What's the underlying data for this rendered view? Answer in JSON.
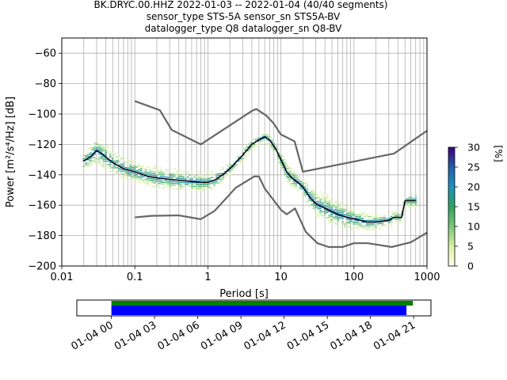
{
  "chart_data": {
    "type": "heatmap",
    "title": {
      "line1": "BK.DRYC.00.HHZ   2022-01-03 -- 2022-01-04  (40/40 segments)",
      "line2": "sensor_type STS-5A sensor_sn STS5A-BV",
      "line3": "datalogger_type Q8 datalogger_sn Q8-BV"
    },
    "xlabel": "Period [s]",
    "ylabel": "Power [m²/s⁴/Hz] [dB]",
    "x_scale": "log",
    "xlim": [
      0.01,
      1000
    ],
    "ylim": [
      -200,
      -50
    ],
    "x_ticks": [
      {
        "value": 0.01,
        "label": "0.01"
      },
      {
        "value": 0.1,
        "label": "0.1"
      },
      {
        "value": 1,
        "label": "1"
      },
      {
        "value": 10,
        "label": "10"
      },
      {
        "value": 100,
        "label": "100"
      },
      {
        "value": 1000,
        "label": "1000"
      }
    ],
    "y_ticks": [
      {
        "value": -60,
        "label": "−60"
      },
      {
        "value": -80,
        "label": "−80"
      },
      {
        "value": -100,
        "label": "−100"
      },
      {
        "value": -120,
        "label": "−120"
      },
      {
        "value": -140,
        "label": "−140"
      },
      {
        "value": -160,
        "label": "−160"
      },
      {
        "value": -180,
        "label": "−180"
      },
      {
        "value": -200,
        "label": "−200"
      }
    ],
    "grid": true,
    "colorbar": {
      "label": "[%]",
      "range": [
        0,
        30
      ],
      "colormap": [
        "#ffffe5",
        "#d9f0a3",
        "#78c679",
        "#2ca25f",
        "#1d91c0",
        "#225ea8",
        "#3f007d"
      ],
      "ticks": [
        {
          "value": 0,
          "label": "0"
        },
        {
          "value": 5,
          "label": "5"
        },
        {
          "value": 10,
          "label": "10"
        },
        {
          "value": 15,
          "label": "15"
        },
        {
          "value": 20,
          "label": "20"
        },
        {
          "value": 25,
          "label": "25"
        },
        {
          "value": 30,
          "label": "30"
        }
      ]
    },
    "series": [
      {
        "kind": "psd-mean",
        "color": "#000000",
        "points": [
          [
            0.02,
            -131
          ],
          [
            0.025,
            -128
          ],
          [
            0.03,
            -124
          ],
          [
            0.035,
            -126
          ],
          [
            0.05,
            -132
          ],
          [
            0.07,
            -136
          ],
          [
            0.1,
            -138
          ],
          [
            0.15,
            -141
          ],
          [
            0.2,
            -142
          ],
          [
            0.3,
            -143
          ],
          [
            0.5,
            -144
          ],
          [
            0.8,
            -145
          ],
          [
            1.0,
            -145
          ],
          [
            1.3,
            -143
          ],
          [
            1.7,
            -139
          ],
          [
            2.2,
            -134
          ],
          [
            3.0,
            -127
          ],
          [
            4.0,
            -120
          ],
          [
            5.0,
            -117
          ],
          [
            6.0,
            -115
          ],
          [
            7.0,
            -117
          ],
          [
            8.5,
            -123
          ],
          [
            10,
            -130
          ],
          [
            12,
            -138
          ],
          [
            14,
            -142
          ],
          [
            17,
            -145
          ],
          [
            20,
            -148
          ],
          [
            25,
            -155
          ],
          [
            30,
            -159
          ],
          [
            40,
            -162
          ],
          [
            60,
            -166
          ],
          [
            80,
            -168
          ],
          [
            100,
            -169
          ],
          [
            150,
            -171
          ],
          [
            200,
            -171
          ],
          [
            300,
            -170
          ],
          [
            350,
            -168
          ],
          [
            450,
            -168
          ],
          [
            500,
            -157
          ],
          [
            600,
            -157
          ],
          [
            700,
            -157
          ]
        ]
      },
      {
        "kind": "noise-model-high",
        "color": "#666666",
        "points": [
          [
            0.1,
            -91.5
          ],
          [
            0.22,
            -97.5
          ],
          [
            0.32,
            -110.5
          ],
          [
            0.8,
            -120
          ],
          [
            4.0,
            -98
          ],
          [
            4.6,
            -96.7
          ],
          [
            6.3,
            -101
          ],
          [
            7.9,
            -106
          ],
          [
            10,
            -113.5
          ],
          [
            15.4,
            -118
          ],
          [
            20,
            -138
          ],
          [
            354.8,
            -126
          ],
          [
            1000,
            -111
          ]
        ]
      },
      {
        "kind": "noise-model-low",
        "color": "#666666",
        "points": [
          [
            0.1,
            -168
          ],
          [
            0.17,
            -167
          ],
          [
            0.4,
            -166.7
          ],
          [
            0.8,
            -169.2
          ],
          [
            1.24,
            -163.7
          ],
          [
            2.4,
            -148.6
          ],
          [
            4.3,
            -141.1
          ],
          [
            5.0,
            -141.1
          ],
          [
            6.0,
            -149
          ],
          [
            10,
            -163
          ],
          [
            12,
            -166
          ],
          [
            15.6,
            -162.1
          ],
          [
            21.9,
            -177.5
          ],
          [
            31.6,
            -185
          ],
          [
            45,
            -187.5
          ],
          [
            70,
            -187.5
          ],
          [
            100,
            -185
          ],
          [
            154.5,
            -185
          ],
          [
            328.6,
            -187.5
          ],
          [
            600,
            -184.4
          ],
          [
            1000,
            -178
          ]
        ]
      }
    ],
    "psd_spread": {
      "note": "density bands around the mean curve",
      "periods": [
        0.02,
        0.025,
        0.03,
        0.035,
        0.05,
        0.07,
        0.1,
        0.15,
        0.2,
        0.3,
        0.5,
        0.8,
        1.0,
        1.3,
        1.7,
        2.2,
        3.0,
        4.0,
        5.0,
        6.0,
        7.0,
        8.5,
        10,
        12,
        14,
        17,
        20,
        25,
        30,
        40,
        60,
        80,
        100,
        150,
        200,
        300,
        350,
        450,
        500,
        600,
        700
      ],
      "upper": [
        -124,
        -121,
        -114,
        -117,
        -124,
        -128,
        -130,
        -133,
        -134,
        -135,
        -137,
        -138,
        -138,
        -136,
        -134,
        -130,
        -123,
        -117,
        -114,
        -112,
        -113,
        -118,
        -124,
        -131,
        -136,
        -138,
        -141,
        -146,
        -150,
        -152,
        -156,
        -159,
        -161,
        -165,
        -166,
        -166,
        -164,
        -164,
        -152,
        -152,
        -152
      ],
      "lower": [
        -138,
        -135,
        -133,
        -134,
        -139,
        -142,
        -144,
        -147,
        -148,
        -149,
        -150,
        -150,
        -150,
        -148,
        -143,
        -138,
        -132,
        -124,
        -120,
        -118,
        -121,
        -127,
        -136,
        -144,
        -148,
        -151,
        -154,
        -162,
        -166,
        -170,
        -174,
        -175,
        -176,
        -176,
        -176,
        -175,
        -172,
        -171,
        -162,
        -162,
        -162
      ]
    },
    "data_availability": {
      "x_ticks": [
        "01-04 00",
        "01-04 03",
        "01-04 06",
        "01-04 09",
        "01-04 12",
        "01-04 15",
        "01-04 18",
        "01-04 21"
      ],
      "x_range_hours": [
        -2.4,
        22.2
      ],
      "bars": [
        {
          "name": "",
          "color": "#008000",
          "start_hours": 0,
          "end_hours": 20.95
        },
        {
          "name": "",
          "color": "#0000ff",
          "start_hours": 0,
          "end_hours": 20.5
        }
      ]
    }
  }
}
